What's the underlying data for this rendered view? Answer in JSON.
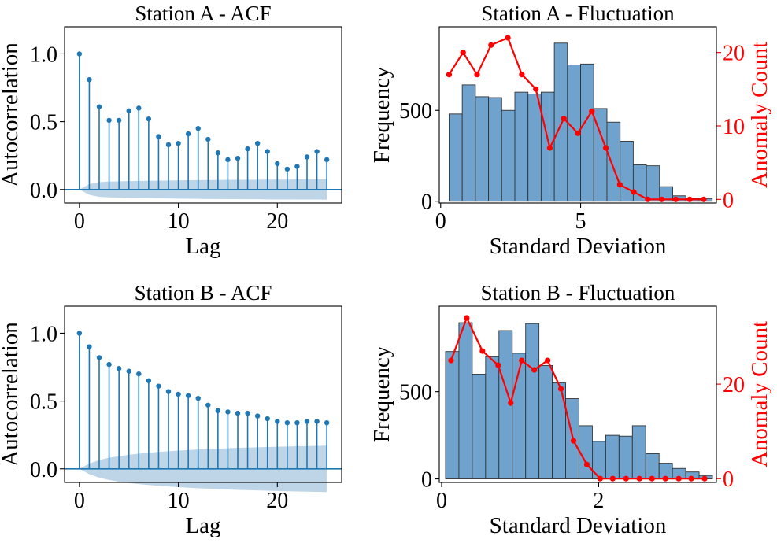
{
  "colors": {
    "stem": "#1f77b4",
    "band": "#b3cde3",
    "hist": "#6fa3cd",
    "hist_edge": "#333333",
    "anomaly": "#ff0000"
  },
  "chart_data": [
    {
      "id": "acfA",
      "type": "stem",
      "title": "Station A - ACF",
      "xlabel": "Lag",
      "ylabel": "Autocorrelation",
      "xlim": [
        -1.5,
        26.5
      ],
      "ylim": [
        -0.1,
        1.2
      ],
      "xticks": [
        0,
        10,
        20
      ],
      "xtick_labels": [
        "0",
        "10",
        "20"
      ],
      "yticks": [
        0.0,
        0.5,
        1.0
      ],
      "ytick_labels": [
        "0.0",
        "0.5",
        "1.0"
      ],
      "x": [
        0,
        1,
        2,
        3,
        4,
        5,
        6,
        7,
        8,
        9,
        10,
        11,
        12,
        13,
        14,
        15,
        16,
        17,
        18,
        19,
        20,
        21,
        22,
        23,
        24,
        25
      ],
      "values": [
        1.0,
        0.81,
        0.61,
        0.51,
        0.51,
        0.58,
        0.6,
        0.52,
        0.39,
        0.33,
        0.34,
        0.41,
        0.45,
        0.37,
        0.27,
        0.22,
        0.23,
        0.3,
        0.34,
        0.28,
        0.19,
        0.15,
        0.17,
        0.24,
        0.28,
        0.22
      ],
      "confint": [
        0.0,
        0.039,
        0.054,
        0.058,
        0.06,
        0.062,
        0.063,
        0.064,
        0.065,
        0.066,
        0.067,
        0.068,
        0.069,
        0.07,
        0.07,
        0.071,
        0.071,
        0.072,
        0.072,
        0.073,
        0.073,
        0.073,
        0.074,
        0.074,
        0.074,
        0.075
      ]
    },
    {
      "id": "histA",
      "type": "histogram_with_line",
      "title": "Station A - Fluctuation",
      "xlabel": "Standard Deviation",
      "ylabel": "Frequency",
      "y2label": "Anomaly Count",
      "xlim": [
        -0.05,
        9.85
      ],
      "ylim": [
        -10,
        960
      ],
      "y2lim": [
        -0.5,
        23.5
      ],
      "xticks": [
        0,
        5
      ],
      "xtick_labels": [
        "0",
        "5"
      ],
      "yticks": [
        0,
        500
      ],
      "ytick_labels": [
        "0",
        "500"
      ],
      "y2ticks": [
        0,
        10,
        20
      ],
      "y2tick_labels": [
        "0",
        "10",
        "20"
      ],
      "bin_edges": [
        0.3,
        0.77,
        1.24,
        1.71,
        2.18,
        2.65,
        3.12,
        3.59,
        4.06,
        4.53,
        5.0,
        5.47,
        5.94,
        6.41,
        6.88,
        7.35,
        7.82,
        8.29,
        8.76,
        9.23,
        9.7
      ],
      "counts": [
        480,
        640,
        575,
        570,
        500,
        600,
        590,
        600,
        870,
        750,
        755,
        510,
        435,
        330,
        200,
        195,
        80,
        30,
        15,
        15
      ],
      "anomaly_x": [
        0.3,
        0.8,
        1.3,
        1.8,
        2.4,
        2.9,
        3.4,
        3.9,
        4.4,
        4.9,
        5.4,
        5.9,
        6.4,
        6.9,
        7.4,
        7.9,
        8.4,
        8.9,
        9.4
      ],
      "anomaly_counts": [
        17,
        20,
        17,
        21,
        22,
        17,
        15,
        7,
        11,
        9,
        12,
        7,
        2,
        1,
        0,
        0,
        0,
        0,
        0
      ]
    },
    {
      "id": "acfB",
      "type": "stem",
      "title": "Station B - ACF",
      "xlabel": "Lag",
      "ylabel": "Autocorrelation",
      "xlim": [
        -1.5,
        26.5
      ],
      "ylim": [
        -0.1,
        1.2
      ],
      "xticks": [
        0,
        10,
        20
      ],
      "xtick_labels": [
        "0",
        "10",
        "20"
      ],
      "yticks": [
        0.0,
        0.5,
        1.0
      ],
      "ytick_labels": [
        "0.0",
        "0.5",
        "1.0"
      ],
      "x": [
        0,
        1,
        2,
        3,
        4,
        5,
        6,
        7,
        8,
        9,
        10,
        11,
        12,
        13,
        14,
        15,
        16,
        17,
        18,
        19,
        20,
        21,
        22,
        23,
        24,
        25
      ],
      "values": [
        1.0,
        0.9,
        0.82,
        0.77,
        0.74,
        0.72,
        0.7,
        0.65,
        0.61,
        0.57,
        0.55,
        0.54,
        0.52,
        0.47,
        0.43,
        0.42,
        0.41,
        0.41,
        0.39,
        0.37,
        0.35,
        0.34,
        0.34,
        0.35,
        0.35,
        0.34
      ],
      "confint": [
        0.0,
        0.039,
        0.065,
        0.082,
        0.094,
        0.104,
        0.112,
        0.119,
        0.125,
        0.13,
        0.135,
        0.139,
        0.143,
        0.146,
        0.149,
        0.152,
        0.155,
        0.157,
        0.159,
        0.161,
        0.163,
        0.165,
        0.167,
        0.168,
        0.17,
        0.171
      ]
    },
    {
      "id": "histB",
      "type": "histogram_with_line",
      "title": "Station B - Fluctuation",
      "xlabel": "Standard Deviation",
      "ylabel": "Frequency",
      "y2label": "Anomaly Count",
      "xlim": [
        -0.03,
        3.5
      ],
      "ylim": [
        -20,
        990
      ],
      "y2lim": [
        -0.8,
        36.5
      ],
      "xticks": [
        0,
        2
      ],
      "xtick_labels": [
        "0",
        "2"
      ],
      "yticks": [
        0,
        500
      ],
      "ytick_labels": [
        "0",
        "500"
      ],
      "y2ticks": [
        0,
        20
      ],
      "y2tick_labels": [
        "0",
        "20"
      ],
      "bin_edges": [
        0.05,
        0.22,
        0.39,
        0.56,
        0.73,
        0.9,
        1.07,
        1.24,
        1.41,
        1.58,
        1.75,
        1.92,
        2.09,
        2.26,
        2.43,
        2.6,
        2.77,
        2.94,
        3.11,
        3.28,
        3.45
      ],
      "counts": [
        730,
        895,
        600,
        700,
        850,
        720,
        890,
        650,
        550,
        460,
        305,
        215,
        250,
        245,
        305,
        145,
        90,
        60,
        40,
        20
      ],
      "anomaly_x": [
        0.12,
        0.32,
        0.52,
        0.72,
        0.88,
        1.02,
        1.18,
        1.35,
        1.52,
        1.68,
        1.85,
        2.02,
        2.18,
        2.35,
        2.52,
        2.68,
        2.85,
        3.02,
        3.18,
        3.35
      ],
      "anomaly_counts": [
        25,
        34,
        27,
        24,
        16,
        25,
        23,
        25,
        19,
        8,
        3,
        0,
        0,
        0,
        0,
        0,
        0,
        0,
        0,
        0
      ]
    }
  ]
}
